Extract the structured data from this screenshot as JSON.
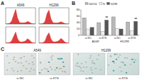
{
  "figure": {
    "panel_labels": [
      "A",
      "B",
      "C"
    ]
  },
  "chart_data": [
    {
      "type": "area",
      "title": "A549",
      "color": "#d62020",
      "tick_labels": false,
      "x": [
        0,
        10,
        20,
        30,
        40,
        50,
        60,
        70,
        80,
        90,
        100,
        110,
        120,
        130,
        140,
        150
      ],
      "values": [
        0,
        2,
        5,
        20,
        60,
        100,
        40,
        10,
        8,
        8,
        10,
        18,
        12,
        4,
        1,
        0
      ],
      "xlim": [
        0,
        150
      ],
      "ylim": [
        0,
        110
      ]
    },
    {
      "type": "area",
      "title": "H1299",
      "color": "#d62020",
      "tick_labels": false,
      "x": [
        0,
        10,
        20,
        30,
        40,
        50,
        60,
        70,
        80,
        90,
        100,
        110,
        120,
        130,
        140,
        150
      ],
      "values": [
        0,
        1,
        4,
        18,
        70,
        95,
        35,
        9,
        7,
        7,
        9,
        16,
        10,
        3,
        1,
        0
      ],
      "xlim": [
        0,
        150
      ],
      "ylim": [
        0,
        110
      ]
    },
    {
      "type": "area",
      "color": "#d62020",
      "tick_labels": false,
      "x": [
        0,
        10,
        20,
        30,
        40,
        50,
        60,
        70,
        80,
        90,
        100,
        110,
        120,
        130,
        140,
        150
      ],
      "values": [
        0,
        2,
        4,
        15,
        45,
        75,
        30,
        10,
        8,
        10,
        15,
        30,
        20,
        6,
        1,
        0
      ],
      "xlim": [
        0,
        150
      ],
      "ylim": [
        0,
        110
      ]
    },
    {
      "type": "area",
      "color": "#d62020",
      "tick_labels": false,
      "x": [
        0,
        10,
        20,
        30,
        40,
        50,
        60,
        70,
        80,
        90,
        100,
        110,
        120,
        130,
        140,
        150
      ],
      "values": [
        0,
        1,
        3,
        14,
        50,
        70,
        28,
        9,
        8,
        11,
        17,
        32,
        22,
        7,
        1,
        0
      ],
      "xlim": [
        0,
        150
      ],
      "ylim": [
        0,
        110
      ]
    },
    {
      "type": "bar",
      "categories": [
        "si-NC",
        "si-KTS",
        "si-NC",
        "si-KTS"
      ],
      "group_labels": [
        "A549",
        "H1299"
      ],
      "series": [
        {
          "name": "G0/G1",
          "color": "#b8b8b8",
          "values": [
            55,
            40,
            58,
            42
          ]
        },
        {
          "name": "S",
          "color": "#eeeeee",
          "values": [
            20,
            12,
            22,
            14
          ]
        },
        {
          "name": "G2/M",
          "color": "#555555",
          "values": [
            25,
            48,
            20,
            44
          ]
        }
      ],
      "annotations": [
        {
          "text": "**",
          "series": 2,
          "index": 1
        },
        {
          "text": "**",
          "series": 2,
          "index": 3
        }
      ],
      "ylim": [
        0,
        80
      ],
      "yticks": [
        0,
        20,
        40,
        60,
        80
      ],
      "legend": "top"
    }
  ],
  "images": {
    "group_labels": [
      "A549",
      "H1299"
    ],
    "labels": [
      "si-NC",
      "si-KTS",
      "si-NC",
      "si-KTS"
    ]
  }
}
